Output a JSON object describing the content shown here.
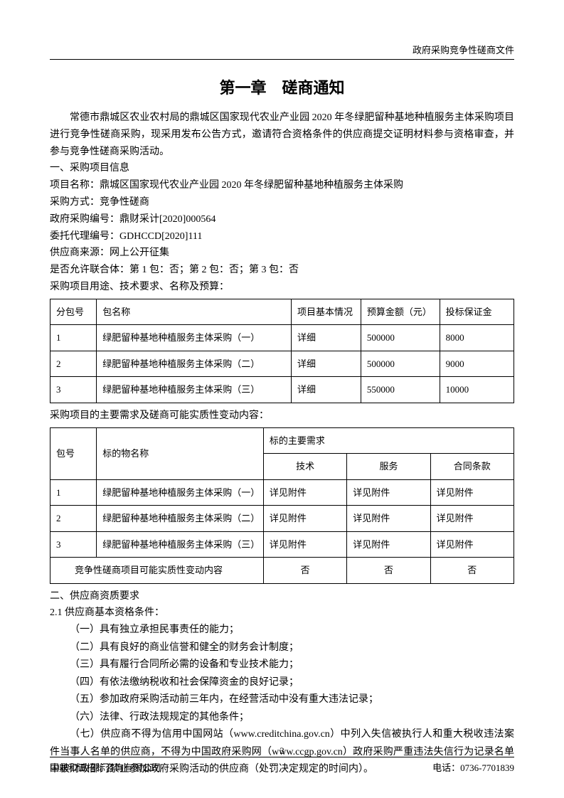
{
  "header": {
    "doc_type": "政府采购竞争性磋商文件"
  },
  "title": "第一章　磋商通知",
  "intro": "常德市鼎城区农业农村局的鼎城区国家现代农业产业园 2020 年冬绿肥留种基地种植服务主体采购项目进行竞争性磋商采购，现采用发布公告方式，邀请符合资格条件的供应商提交证明材料参与资格审查，并参与竞争性磋商采购活动。",
  "section1": {
    "heading": "一、采购项目信息",
    "project_name_label": "项目名称：",
    "project_name": "鼎城区国家现代农业产业园 2020 年冬绿肥留种基地种植服务主体采购",
    "method_label": "采购方式：",
    "method": "竞争性磋商",
    "gov_code_label": "政府采购编号：",
    "gov_code": "鼎财采计[2020]000564",
    "agent_code_label": "委托代理编号：",
    "agent_code": "GDHCCD[2020]111",
    "source_label": "供应商来源：",
    "source": "网上公开征集",
    "union_label": "是否允许联合体：",
    "union": "第 1 包：否；第 2 包：否；第 3 包：否",
    "use_label": "采购项目用途、技术要求、名称及预算："
  },
  "table1": {
    "headers": [
      "分包号",
      "包名称",
      "项目基本情况",
      "预算金额（元）",
      "投标保证金"
    ],
    "rows": [
      [
        "1",
        "绿肥留种基地种植服务主体采购（一）",
        "详细",
        "500000",
        "8000"
      ],
      [
        "2",
        "绿肥留种基地种植服务主体采购（二）",
        "详细",
        "500000",
        "9000"
      ],
      [
        "3",
        "绿肥留种基地种植服务主体采购（三）",
        "详细",
        "550000",
        "10000"
      ]
    ]
  },
  "between_tables": "采购项目的主要需求及磋商可能实质性变动内容：",
  "table2": {
    "head_r1_c0": "包号",
    "head_r1_c1": "标的物名称",
    "head_r1_c2": "标的主要需求",
    "head_r2": [
      "技术",
      "服务",
      "合同条款"
    ],
    "rows": [
      [
        "1",
        "绿肥留种基地种植服务主体采购（一）",
        "详见附件",
        "详见附件",
        "详见附件"
      ],
      [
        "2",
        "绿肥留种基地种植服务主体采购（二）",
        "详见附件",
        "详见附件",
        "详见附件"
      ],
      [
        "3",
        "绿肥留种基地种植服务主体采购（三）",
        "详见附件",
        "详见附件",
        "详见附件"
      ]
    ],
    "last_row_label": "竞争性磋商项目可能实质性变动内容",
    "last_row_vals": [
      "否",
      "否",
      "否"
    ]
  },
  "section2": {
    "heading": "二、供应商资质要求",
    "sub": "2.1 供应商基本资格条件：",
    "items": [
      "（一）具有独立承担民事责任的能力；",
      "（二）具有良好的商业信誉和健全的财务会计制度；",
      "（三）具有履行合同所必需的设备和专业技术能力；",
      "（四）有依法缴纳税收和社会保障资金的良好记录；",
      "（五）参加政府采购活动前三年内，在经营活动中没有重大违法记录；",
      "（六）法律、行政法规规定的其他条件；",
      "（七）供应商不得为信用中国网站（www.creditchina.gov.cn）中列入失信被执行人和重大税收违法案件当事人名单的供应商，不得为中国政府采购网（www.ccgp.gov.cn）政府采购严重违法失信行为记录名单中被财政部门禁止参加政府采购活动的供应商（处罚决定规定的时间内）。"
    ]
  },
  "footer": {
    "company": "国鼎和诚招标咨询有限公司",
    "phone_label": "电话：",
    "phone": "0736-7701839",
    "page": "3"
  }
}
